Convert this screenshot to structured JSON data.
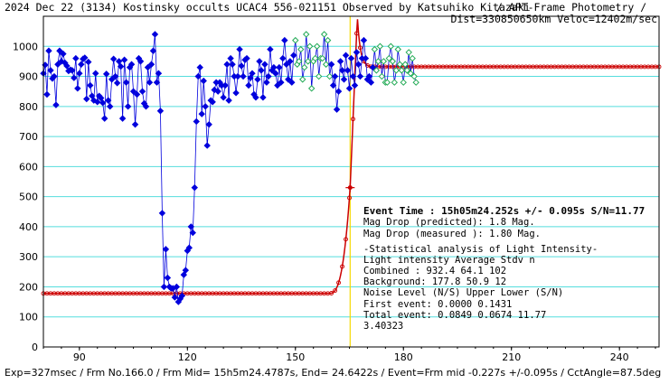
{
  "title_left": "2024 Dec 22 (3134) Kostinsky occults UCAC4 556-021151 Observed by Katsuhiko Kitazaki",
  "title_right": "/ APT-Frame Photometry /",
  "subtitle": "Dist=330850650km Veloc=12402m/sec",
  "footer": "Exp=327msec / Frm No.166.0 / Frm Mid= 15h5m24.4787s, End= 24.6422s / Event=Frm mid -0.227s +/-0.095s / CctAngle=87.5deg",
  "info": {
    "event_time": "Event Time : 15h05m24.252s  +/- 0.095s  S/N=11.77",
    "lines": [
      "Mag Drop (predicted):  1.8   Mag.",
      "Mag Drop (measured ):  1.80  Mag.",
      "-Statistical analysis of Light Intensity-",
      "Light intensity    Average   Stdv      n",
      "  Combined  :       932.4    64.1    102",
      "  Background:       177.8    50.9     12",
      "Noise Level (N/S)  Upper    Lower   (S/N)",
      "   First event:    0.0000   0.1431",
      "   Total event:    0.0849   0.0674   11.77",
      "3.40323"
    ]
  },
  "colors": {
    "blue": "#0000dd",
    "green": "#22aa55",
    "model": "#cc0000",
    "grid": "#55dddd",
    "event": "#f5d800"
  },
  "chart_data": {
    "type": "scatter",
    "xlim": [
      80,
      251
    ],
    "ylim": [
      0,
      1100
    ],
    "x_ticks": [
      90,
      120,
      150,
      180,
      210,
      240
    ],
    "y_ticks": [
      0,
      100,
      200,
      300,
      400,
      500,
      600,
      700,
      800,
      900,
      1000
    ],
    "event_x": 165.2,
    "event_y": 530,
    "model": {
      "baseline": 178,
      "plateau": 932,
      "peak": 1100,
      "drop_x": 165.2,
      "peak_x": 167.2
    },
    "series": [
      {
        "name": "observed",
        "x0": 80,
        "values": [
          910,
          938,
          840,
          985,
          920,
          893,
          900,
          805,
          940,
          985,
          950,
          975,
          945,
          935,
          918,
          922,
          920,
          895,
          960,
          860,
          910,
          940,
          958,
          962,
          825,
          948,
          870,
          835,
          820,
          910,
          815,
          835,
          828,
          812,
          760,
          908,
          820,
          800,
          890,
          958,
          900,
          878,
          950,
          933,
          760,
          955,
          880,
          800,
          930,
          940,
          850,
          740,
          840,
          960,
          950,
          850,
          810,
          800,
          930,
          880,
          940,
          985,
          1040,
          880,
          910,
          785,
          445,
          200,
          325,
          230,
          200,
          195,
          195,
          165,
          200,
          150,
          160,
          170,
          240,
          255,
          320,
          330,
          400,
          380,
          530,
          750,
          900,
          930,
          775,
          885,
          800,
          670,
          740,
          820,
          815,
          855,
          880,
          850,
          880,
          870,
          830,
          870,
          940,
          820,
          960,
          940,
          900,
          845,
          900,
          990,
          935,
          900,
          955,
          960,
          870,
          895,
          910,
          840,
          830,
          890,
          950,
          920,
          830,
          940,
          880,
          900,
          990,
          920,
          930,
          910,
          870,
          930,
          880,
          960,
          1020,
          940,
          890,
          950,
          880,
          970,
          1020,
          940,
          950,
          990,
          890,
          930,
          1040,
          950,
          1000,
          860,
          950,
          960,
          1000,
          900,
          960,
          960,
          1040,
          940,
          1020,
          900,
          940,
          870,
          900,
          790,
          850,
          950,
          920,
          890,
          970,
          920,
          860,
          960,
          900,
          870,
          980,
          940,
          900,
          960,
          1020,
          960,
          890,
          900,
          880,
          930,
          990,
          920,
          950,
          1000,
          900,
          950,
          880,
          880,
          960,
          1000,
          950,
          880,
          920,
          990,
          940,
          920,
          880,
          940,
          920,
          980,
          910,
          960,
          900,
          880
        ]
      },
      {
        "name": "early_frames",
        "start": 80,
        "end": 150
      },
      {
        "name": "late_frames",
        "start": 150,
        "end": 251
      }
    ]
  }
}
